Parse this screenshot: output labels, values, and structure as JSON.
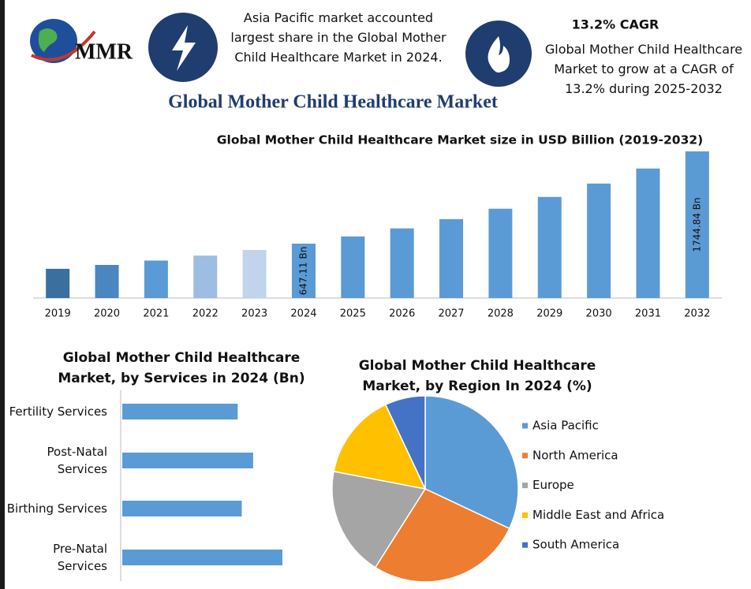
{
  "header": {
    "logo_text": "MMR",
    "highlight_text": "Asia Pacific market accounted largest share in the Global Mother Child Healthcare Market in 2024.",
    "cagr_title": "13.2% CAGR",
    "cagr_text": "Global Mother Child Healthcare Market to grow at a CAGR of 13.2% during 2025-2032",
    "title": "Global Mother Child Healthcare Market"
  },
  "chart_data": [
    {
      "type": "bar",
      "title": "Global Mother Child Healthcare Market size in USD Billion (2019-2032)",
      "categories": [
        "2019",
        "2020",
        "2021",
        "2022",
        "2023",
        "2024",
        "2025",
        "2026",
        "2027",
        "2028",
        "2029",
        "2030",
        "2031",
        "2032"
      ],
      "values": [
        348,
        394,
        446,
        505,
        572,
        647.11,
        733,
        829,
        939,
        1063,
        1203,
        1362,
        1541,
        1744.84
      ],
      "value_labels": [
        null,
        null,
        null,
        null,
        null,
        "647.11 Bn",
        null,
        null,
        null,
        null,
        null,
        null,
        null,
        "1744.84 Bn"
      ],
      "colors": [
        "#3a6f9f",
        "#4a86c0",
        "#5b9bd5",
        "#9dbde3",
        "#c0d4ec",
        "#5b9bd5",
        "#5b9bd5",
        "#5b9bd5",
        "#5b9bd5",
        "#5b9bd5",
        "#5b9bd5",
        "#5b9bd5",
        "#5b9bd5",
        "#5b9bd5"
      ]
    },
    {
      "type": "barh",
      "title": "Global Mother Child Healthcare Market, by Services in 2024 (Bn)",
      "categories": [
        "Fertility Services",
        "Post-Natal Services",
        "Birthing Services",
        "Pre-Natal Services"
      ],
      "values": [
        142,
        161,
        147,
        197
      ],
      "color": "#5b9bd5"
    },
    {
      "type": "pie",
      "title": "Global Mother Child Healthcare Market, by Region In 2024 (%)",
      "categories": [
        "Asia Pacific",
        "North America",
        "Europe",
        "Middle East and Africa",
        "South America"
      ],
      "values": [
        32,
        27,
        19,
        15,
        7
      ],
      "colors": [
        "#5b9bd5",
        "#ed7d31",
        "#a5a5a5",
        "#ffc000",
        "#4472c4"
      ],
      "legend": "right"
    }
  ]
}
